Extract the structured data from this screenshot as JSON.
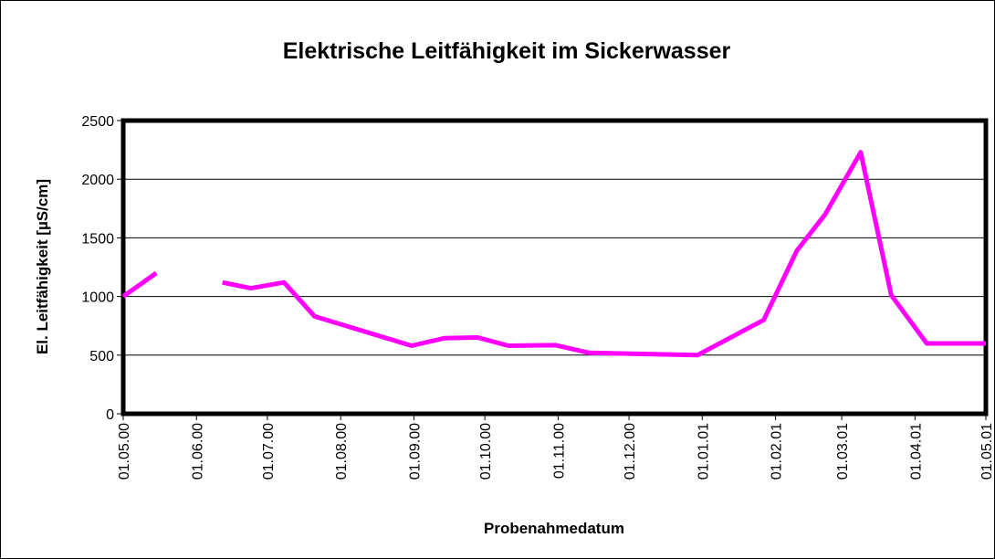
{
  "chart_data": {
    "type": "line",
    "title": "Elektrische Leitfähigkeit im Sickerwasser",
    "x_label": "Probenahmedatum",
    "y_label": "El. Leitfähigkeit [µS/cm]",
    "x": [
      "2000-05-01",
      "2000-05-15",
      null,
      "2000-06-12",
      "2000-06-24",
      "2000-07-08",
      "2000-07-21",
      "2000-08-31",
      "2000-09-14",
      "2000-09-28",
      "2000-10-11",
      "2000-10-31",
      "2000-11-14",
      "2000-12-30",
      "2001-01-27",
      "2001-02-10",
      "2001-02-22",
      "2001-03-09",
      "2001-03-22",
      "2001-04-06",
      "2001-05-01"
    ],
    "series": [
      {
        "name": "Leitfähigkeit",
        "color": "#ff00ff",
        "values": [
          1000,
          1200,
          null,
          1120,
          1070,
          1120,
          830,
          580,
          645,
          650,
          580,
          585,
          520,
          500,
          800,
          1390,
          1700,
          2230,
          1010,
          600,
          600
        ]
      }
    ],
    "xlim": [
      "2000-05-01",
      "2001-05-01"
    ],
    "xticks": [
      {
        "value": "2000-05-01",
        "label": "01.05.00"
      },
      {
        "value": "2000-06-01",
        "label": "01.06.00"
      },
      {
        "value": "2000-07-01",
        "label": "01.07.00"
      },
      {
        "value": "2000-08-01",
        "label": "01.08.00"
      },
      {
        "value": "2000-09-01",
        "label": "01.09.00"
      },
      {
        "value": "2000-10-01",
        "label": "01.10.00"
      },
      {
        "value": "2000-11-01",
        "label": "01.11.00"
      },
      {
        "value": "2000-12-01",
        "label": "01.12.00"
      },
      {
        "value": "2001-01-01",
        "label": "01.01.01"
      },
      {
        "value": "2001-02-01",
        "label": "01.02.01"
      },
      {
        "value": "2001-03-01",
        "label": "01.03.01"
      },
      {
        "value": "2001-04-01",
        "label": "01.04.01"
      },
      {
        "value": "2001-05-01",
        "label": "01.05.01"
      }
    ],
    "ylim": [
      0,
      2500
    ],
    "yticks": [
      0,
      500,
      1000,
      1500,
      2000,
      2500
    ],
    "grid": true
  }
}
